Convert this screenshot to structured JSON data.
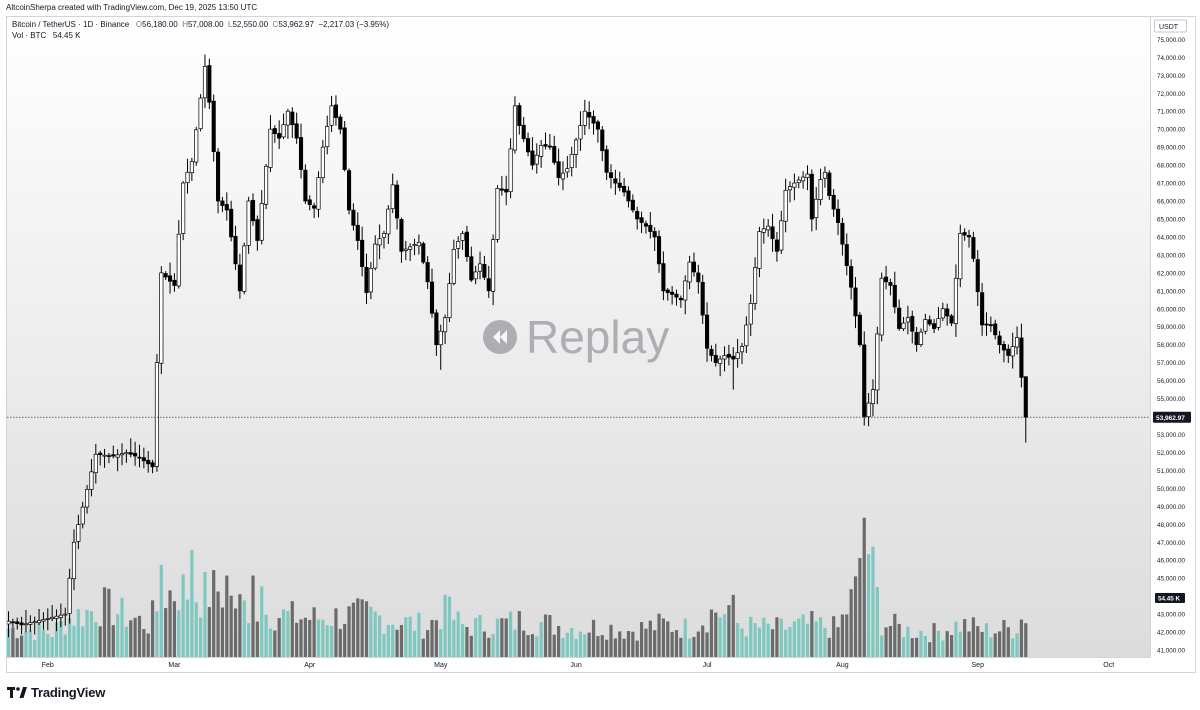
{
  "header": {
    "attribution": "AltcoinSherpa created with TradingView.com, Dec 19, 2025 13:50 UTC"
  },
  "legend": {
    "symbol": "Bitcoin / TetherUS · 1D · Binance",
    "open_label": "O",
    "open": "56,180.00",
    "high_label": "H",
    "high": "57,008.00",
    "low_label": "L",
    "low": "52,550.00",
    "close_label": "C",
    "close": "53,962.97",
    "change": "−2,217.03 (−3.95%)",
    "volume_label": "Vol · BTC",
    "volume": "54.45 K"
  },
  "replay": {
    "label": "Replay"
  },
  "footer": {
    "brand": "TradingView"
  },
  "colors": {
    "up": "#ffffff",
    "down": "#000000",
    "wick": "#000000",
    "vol_up": "#7fc8c0",
    "vol_down": "#6b6b6b",
    "bg_top": "#ffffff",
    "bg_bottom": "#dcdcdc",
    "price_label_bg": "#131722"
  },
  "chart_data": {
    "type": "candlestick",
    "currency": "USDT",
    "last_price": 53962.97,
    "last_price_label": "53,962.97",
    "last_volume_label": "54.45 K",
    "ylim": [
      40500,
      75800
    ],
    "y_ticks": [
      "75,000.00",
      "74,000.00",
      "73,000.00",
      "72,000.00",
      "71,000.00",
      "70,000.00",
      "69,000.00",
      "68,000.00",
      "67,000.00",
      "66,000.00",
      "65,000.00",
      "64,000.00",
      "63,000.00",
      "62,000.00",
      "61,000.00",
      "60,000.00",
      "59,000.00",
      "58,000.00",
      "57,000.00",
      "56,000.00",
      "55,000.00",
      "54,000.00",
      "53,000.00",
      "52,000.00",
      "51,000.00",
      "50,000.00",
      "49,000.00",
      "48,000.00",
      "47,000.00",
      "46,000.00",
      "45,000.00",
      "44,000.00",
      "43,000.00",
      "42,000.00",
      "41,000.00"
    ],
    "x_ticks": [
      "Feb",
      "Mar",
      "Apr",
      "May",
      "Jun",
      "Jul",
      "Aug",
      "Sep",
      "Oct"
    ],
    "x_tick_day_index": [
      9,
      38,
      69,
      99,
      130,
      160,
      191,
      222,
      252
    ],
    "anchors": [
      [
        0,
        42600
      ],
      [
        3,
        42400
      ],
      [
        8,
        42700
      ],
      [
        13,
        43000
      ],
      [
        15,
        47000
      ],
      [
        20,
        51900
      ],
      [
        24,
        51800
      ],
      [
        27,
        52000
      ],
      [
        30,
        51700
      ],
      [
        33,
        51200
      ],
      [
        34,
        57000
      ],
      [
        35,
        62000
      ],
      [
        38,
        61300
      ],
      [
        40,
        67000
      ],
      [
        42,
        68200
      ],
      [
        45,
        73500
      ],
      [
        46,
        71500
      ],
      [
        48,
        66000
      ],
      [
        50,
        65500
      ],
      [
        53,
        61000
      ],
      [
        55,
        66000
      ],
      [
        57,
        63800
      ],
      [
        60,
        70000
      ],
      [
        62,
        69500
      ],
      [
        64,
        71000
      ],
      [
        66,
        69500
      ],
      [
        68,
        66000
      ],
      [
        70,
        65600
      ],
      [
        72,
        69000
      ],
      [
        74,
        71300
      ],
      [
        76,
        70000
      ],
      [
        78,
        65500
      ],
      [
        80,
        63800
      ],
      [
        82,
        60900
      ],
      [
        84,
        63600
      ],
      [
        86,
        64200
      ],
      [
        88,
        66900
      ],
      [
        90,
        63200
      ],
      [
        94,
        63700
      ],
      [
        96,
        61500
      ],
      [
        98,
        58000
      ],
      [
        100,
        59500
      ],
      [
        102,
        63300
      ],
      [
        104,
        64200
      ],
      [
        106,
        61600
      ],
      [
        108,
        62500
      ],
      [
        110,
        61000
      ],
      [
        112,
        66700
      ],
      [
        114,
        66500
      ],
      [
        116,
        71300
      ],
      [
        117,
        70200
      ],
      [
        120,
        68000
      ],
      [
        122,
        69100
      ],
      [
        124,
        69000
      ],
      [
        126,
        67300
      ],
      [
        128,
        67800
      ],
      [
        132,
        71000
      ],
      [
        135,
        70000
      ],
      [
        137,
        67600
      ],
      [
        139,
        67000
      ],
      [
        141,
        66500
      ],
      [
        144,
        65000
      ],
      [
        146,
        64600
      ],
      [
        148,
        64000
      ],
      [
        150,
        61000
      ],
      [
        152,
        60800
      ],
      [
        154,
        60500
      ],
      [
        156,
        62600
      ],
      [
        158,
        61500
      ],
      [
        160,
        57800
      ],
      [
        162,
        57000
      ],
      [
        164,
        57400
      ],
      [
        166,
        57200
      ],
      [
        168,
        57900
      ],
      [
        170,
        60300
      ],
      [
        172,
        64300
      ],
      [
        174,
        64600
      ],
      [
        176,
        63200
      ],
      [
        178,
        66600
      ],
      [
        180,
        67000
      ],
      [
        183,
        67500
      ],
      [
        184,
        65000
      ],
      [
        186,
        67200
      ],
      [
        187,
        67600
      ],
      [
        188,
        66300
      ],
      [
        190,
        64800
      ],
      [
        193,
        61200
      ],
      [
        195,
        58000
      ],
      [
        196,
        54000
      ],
      [
        198,
        55500
      ],
      [
        200,
        61700
      ],
      [
        202,
        61300
      ],
      [
        204,
        58900
      ],
      [
        206,
        59500
      ],
      [
        208,
        58000
      ],
      [
        210,
        59400
      ],
      [
        212,
        58900
      ],
      [
        214,
        60000
      ],
      [
        216,
        59200
      ],
      [
        218,
        64200
      ],
      [
        220,
        64000
      ],
      [
        221,
        62800
      ],
      [
        223,
        59100
      ],
      [
        225,
        59100
      ],
      [
        227,
        58000
      ],
      [
        229,
        57400
      ],
      [
        231,
        58400
      ],
      [
        232,
        56180
      ],
      [
        233,
        53962.97
      ]
    ],
    "volume_anchors": [
      [
        0,
        1.4
      ],
      [
        10,
        1.2
      ],
      [
        14,
        1.9
      ],
      [
        22,
        2.5
      ],
      [
        26,
        2.1
      ],
      [
        32,
        1.6
      ],
      [
        36,
        3.1
      ],
      [
        40,
        3.3
      ],
      [
        44,
        3.0
      ],
      [
        48,
        3.3
      ],
      [
        52,
        2.6
      ],
      [
        58,
        2.2
      ],
      [
        64,
        2.0
      ],
      [
        70,
        1.9
      ],
      [
        76,
        2.0
      ],
      [
        82,
        2.1
      ],
      [
        88,
        1.8
      ],
      [
        96,
        1.5
      ],
      [
        100,
        2.3
      ],
      [
        104,
        1.5
      ],
      [
        112,
        1.6
      ],
      [
        118,
        1.8
      ],
      [
        124,
        1.6
      ],
      [
        130,
        1.4
      ],
      [
        136,
        1.5
      ],
      [
        142,
        1.3
      ],
      [
        150,
        1.6
      ],
      [
        156,
        1.4
      ],
      [
        162,
        2.3
      ],
      [
        168,
        1.5
      ],
      [
        176,
        1.4
      ],
      [
        184,
        1.6
      ],
      [
        190,
        1.4
      ],
      [
        194,
        3.2
      ],
      [
        196,
        6.5
      ],
      [
        200,
        1.7
      ],
      [
        206,
        1.3
      ],
      [
        212,
        1.2
      ],
      [
        218,
        1.6
      ],
      [
        224,
        1.3
      ],
      [
        230,
        1.4
      ],
      [
        233,
        2.1
      ]
    ],
    "volume_spikes": [
      [
        35,
        4.3
      ],
      [
        42,
        5.0
      ],
      [
        50,
        3.8
      ],
      [
        56,
        3.8
      ],
      [
        58,
        3.3
      ],
      [
        100,
        2.9
      ],
      [
        166,
        2.9
      ],
      [
        196,
        6.5
      ]
    ]
  }
}
